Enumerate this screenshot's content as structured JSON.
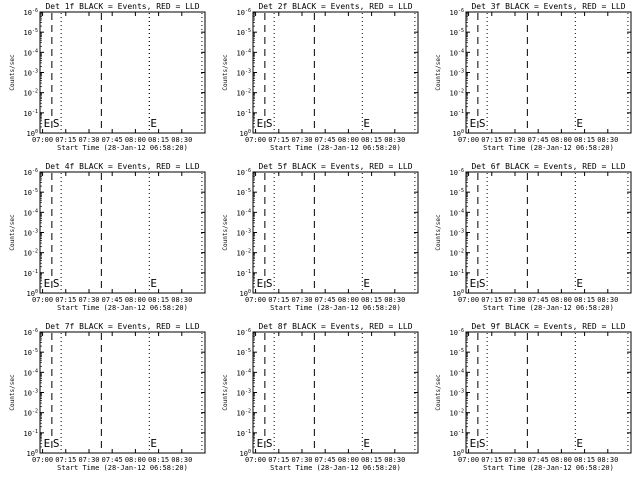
{
  "figure": {
    "panels": [
      {
        "title": "Det 1f BLACK = Events, RED = LLD",
        "xlabel": "Start Time (28-Jan-12 06:58:20)",
        "ylabel": "Counts/sec"
      },
      {
        "title": "Det 2f BLACK = Events, RED = LLD",
        "xlabel": "Start Time (28-Jan-12 06:58:20)",
        "ylabel": "Counts/sec"
      },
      {
        "title": "Det 3f BLACK = Events, RED = LLD",
        "xlabel": "Start Time (28-Jan-12 06:58:20)",
        "ylabel": "Counts/sec"
      },
      {
        "title": "Det 4f BLACK = Events, RED = LLD",
        "xlabel": "Start Time (28-Jan-12 06:58:20)",
        "ylabel": "Counts/sec"
      },
      {
        "title": "Det 5f BLACK = Events, RED = LLD",
        "xlabel": "Start Time (28-Jan-12 06:58:20)",
        "ylabel": "Counts/sec"
      },
      {
        "title": "Det 6f BLACK = Events, RED = LLD",
        "xlabel": "Start Time (28-Jan-12 06:58:20)",
        "ylabel": "Counts/sec"
      },
      {
        "title": "Det 7f BLACK = Events, RED = LLD",
        "xlabel": "Start Time (28-Jan-12 06:58:20)",
        "ylabel": "Counts/sec"
      },
      {
        "title": "Det 8f BLACK = Events, RED = LLD",
        "xlabel": "Start Time (28-Jan-12 06:58:20)",
        "ylabel": "Counts/sec"
      },
      {
        "title": "Det 9f BLACK = Events, RED = LLD",
        "xlabel": "Start Time (28-Jan-12 06:58:20)",
        "ylabel": "Counts/sec"
      }
    ],
    "x_tick_labels": [
      "07:00",
      "07:15",
      "07:30",
      "07:45",
      "08:00",
      "08:15",
      "08:30"
    ],
    "y_tick_labels": [
      {
        "base": "10",
        "exp": "0"
      },
      {
        "base": "10",
        "exp": "-1"
      },
      {
        "base": "10",
        "exp": "-2"
      },
      {
        "base": "10",
        "exp": "-3"
      },
      {
        "base": "10",
        "exp": "-4"
      },
      {
        "base": "10",
        "exp": "-5"
      },
      {
        "base": "10",
        "exp": "-6"
      }
    ]
  },
  "chart_data": [
    {
      "type": "line",
      "title": "Det 1f BLACK = Events, RED = LLD",
      "xlabel": "Start Time (28-Jan-12 06:58:20)",
      "ylabel": "Counts/sec",
      "x_range_minutes_after_0700": [
        -1.67,
        105
      ],
      "yscale": "log",
      "ylim": [
        1,
        1e-06
      ],
      "series": [],
      "markers": [
        {
          "label": "E",
          "x": "07:00",
          "style": "solid"
        },
        {
          "label": "S",
          "x": "07:06",
          "style": "dashed"
        },
        {
          "label": "",
          "x": "07:12",
          "style": "dotted"
        },
        {
          "label": "",
          "x": "07:38",
          "style": "dashed"
        },
        {
          "label": "",
          "x": "08:09",
          "style": "dotted"
        },
        {
          "label": "E",
          "x": "08:09",
          "style": "dotted"
        },
        {
          "label": "",
          "x": "08:43",
          "style": "dotted"
        }
      ]
    },
    {
      "type": "line",
      "title": "Det 2f BLACK = Events, RED = LLD",
      "xlabel": "Start Time (28-Jan-12 06:58:20)",
      "ylabel": "Counts/sec",
      "x_range_minutes_after_0700": [
        -1.67,
        105
      ],
      "yscale": "log",
      "ylim": [
        1,
        1e-06
      ],
      "series": [],
      "markers": [
        {
          "label": "E",
          "x": "07:00",
          "style": "solid"
        },
        {
          "label": "S",
          "x": "07:06",
          "style": "dashed"
        },
        {
          "label": "",
          "x": "07:12",
          "style": "dotted"
        },
        {
          "label": "",
          "x": "07:38",
          "style": "dashed"
        },
        {
          "label": "E",
          "x": "08:09",
          "style": "dotted"
        },
        {
          "label": "",
          "x": "08:43",
          "style": "dotted"
        }
      ]
    },
    {
      "type": "line",
      "title": "Det 3f BLACK = Events, RED = LLD",
      "xlabel": "Start Time (28-Jan-12 06:58:20)",
      "ylabel": "Counts/sec",
      "x_range_minutes_after_0700": [
        -1.67,
        105
      ],
      "yscale": "log",
      "ylim": [
        1,
        1e-06
      ],
      "series": [],
      "markers": [
        {
          "label": "E",
          "x": "07:00",
          "style": "solid"
        },
        {
          "label": "S",
          "x": "07:06",
          "style": "dashed"
        },
        {
          "label": "",
          "x": "07:12",
          "style": "dotted"
        },
        {
          "label": "",
          "x": "07:38",
          "style": "dashed"
        },
        {
          "label": "E",
          "x": "08:09",
          "style": "dotted"
        },
        {
          "label": "",
          "x": "08:43",
          "style": "dotted"
        }
      ]
    },
    {
      "type": "line",
      "title": "Det 4f BLACK = Events, RED = LLD",
      "xlabel": "Start Time (28-Jan-12 06:58:20)",
      "ylabel": "Counts/sec",
      "x_range_minutes_after_0700": [
        -1.67,
        105
      ],
      "yscale": "log",
      "ylim": [
        1,
        1e-06
      ],
      "series": [],
      "markers": [
        {
          "label": "E",
          "x": "07:00",
          "style": "solid"
        },
        {
          "label": "S",
          "x": "07:06",
          "style": "dashed"
        },
        {
          "label": "",
          "x": "07:12",
          "style": "dotted"
        },
        {
          "label": "",
          "x": "07:38",
          "style": "dashed"
        },
        {
          "label": "E",
          "x": "08:09",
          "style": "dotted"
        },
        {
          "label": "",
          "x": "08:43",
          "style": "dotted"
        }
      ]
    },
    {
      "type": "line",
      "title": "Det 5f BLACK = Events, RED = LLD",
      "xlabel": "Start Time (28-Jan-12 06:58:20)",
      "ylabel": "Counts/sec",
      "x_range_minutes_after_0700": [
        -1.67,
        105
      ],
      "yscale": "log",
      "ylim": [
        1,
        1e-06
      ],
      "series": [],
      "markers": [
        {
          "label": "E",
          "x": "07:00",
          "style": "solid"
        },
        {
          "label": "S",
          "x": "07:06",
          "style": "dashed"
        },
        {
          "label": "",
          "x": "07:12",
          "style": "dotted"
        },
        {
          "label": "",
          "x": "07:38",
          "style": "dashed"
        },
        {
          "label": "E",
          "x": "08:09",
          "style": "dotted"
        },
        {
          "label": "",
          "x": "08:43",
          "style": "dotted"
        }
      ]
    },
    {
      "type": "line",
      "title": "Det 6f BLACK = Events, RED = LLD",
      "xlabel": "Start Time (28-Jan-12 06:58:20)",
      "ylabel": "Counts/sec",
      "x_range_minutes_after_0700": [
        -1.67,
        105
      ],
      "yscale": "log",
      "ylim": [
        1,
        1e-06
      ],
      "series": [],
      "markers": [
        {
          "label": "E",
          "x": "07:00",
          "style": "solid"
        },
        {
          "label": "S",
          "x": "07:06",
          "style": "dashed"
        },
        {
          "label": "",
          "x": "07:12",
          "style": "dotted"
        },
        {
          "label": "",
          "x": "07:38",
          "style": "dashed"
        },
        {
          "label": "E",
          "x": "08:09",
          "style": "dotted"
        },
        {
          "label": "",
          "x": "08:43",
          "style": "dotted"
        }
      ]
    },
    {
      "type": "line",
      "title": "Det 7f BLACK = Events, RED = LLD",
      "xlabel": "Start Time (28-Jan-12 06:58:20)",
      "ylabel": "Counts/sec",
      "x_range_minutes_after_0700": [
        -1.67,
        105
      ],
      "yscale": "log",
      "ylim": [
        1,
        1e-06
      ],
      "series": [],
      "markers": [
        {
          "label": "E",
          "x": "07:00",
          "style": "solid"
        },
        {
          "label": "S",
          "x": "07:06",
          "style": "dashed"
        },
        {
          "label": "",
          "x": "07:12",
          "style": "dotted"
        },
        {
          "label": "",
          "x": "07:38",
          "style": "dashed"
        },
        {
          "label": "E",
          "x": "08:09",
          "style": "dotted"
        },
        {
          "label": "",
          "x": "08:43",
          "style": "dotted"
        }
      ]
    },
    {
      "type": "line",
      "title": "Det 8f BLACK = Events, RED = LLD",
      "xlabel": "Start Time (28-Jan-12 06:58:20)",
      "ylabel": "Counts/sec",
      "x_range_minutes_after_0700": [
        -1.67,
        105
      ],
      "yscale": "log",
      "ylim": [
        1,
        1e-06
      ],
      "series": [],
      "markers": [
        {
          "label": "E",
          "x": "07:00",
          "style": "solid"
        },
        {
          "label": "S",
          "x": "07:06",
          "style": "dashed"
        },
        {
          "label": "",
          "x": "07:12",
          "style": "dotted"
        },
        {
          "label": "",
          "x": "07:38",
          "style": "dashed"
        },
        {
          "label": "E",
          "x": "08:09",
          "style": "dotted"
        },
        {
          "label": "",
          "x": "08:43",
          "style": "dotted"
        }
      ]
    },
    {
      "type": "line",
      "title": "Det 9f BLACK = Events, RED = LLD",
      "xlabel": "Start Time (28-Jan-12 06:58:20)",
      "ylabel": "Counts/sec",
      "x_range_minutes_after_0700": [
        -1.67,
        105
      ],
      "yscale": "log",
      "ylim": [
        1,
        1e-06
      ],
      "series": [],
      "markers": [
        {
          "label": "E",
          "x": "07:00",
          "style": "solid"
        },
        {
          "label": "S",
          "x": "07:06",
          "style": "dashed"
        },
        {
          "label": "",
          "x": "07:12",
          "style": "dotted"
        },
        {
          "label": "",
          "x": "07:38",
          "style": "dashed"
        },
        {
          "label": "E",
          "x": "08:09",
          "style": "dotted"
        },
        {
          "label": "",
          "x": "08:43",
          "style": "dotted"
        }
      ]
    }
  ]
}
